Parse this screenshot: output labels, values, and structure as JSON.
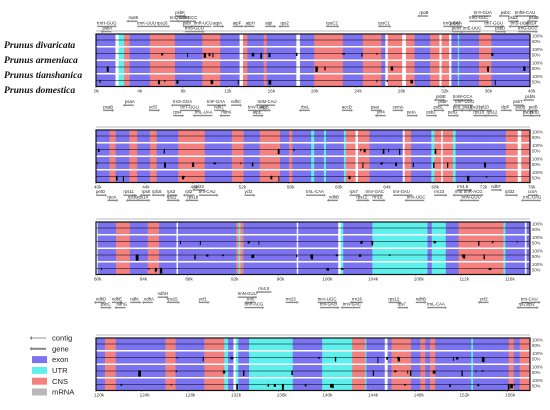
{
  "species": [
    "Prunus divaricata",
    "Prunus armeniaca",
    "Prunus tianshanica",
    "Prunus domestica"
  ],
  "percent_labels": [
    "100%",
    "50%"
  ],
  "colors": {
    "exon": "#7b73f0",
    "utr": "#5ef0ec",
    "cns": "#f48080",
    "mrna": "#b8b8b8",
    "arrow": "#888888",
    "frame": "#111111"
  },
  "legend": [
    {
      "key": "contig",
      "label": "contig",
      "swatch": "arrow-thin"
    },
    {
      "key": "gene",
      "label": "gene",
      "swatch": "arrow"
    },
    {
      "key": "exon",
      "label": "exon",
      "swatch": "exon"
    },
    {
      "key": "utr",
      "label": "UTR",
      "swatch": "utr"
    },
    {
      "key": "cns",
      "label": "CNS",
      "swatch": "cns"
    },
    {
      "key": "mrna",
      "label": "mRNA",
      "swatch": "mrna"
    }
  ],
  "panels": [
    {
      "start_kb": 0,
      "end_kb": 40,
      "ticks": [
        "0k",
        "4k",
        "8k",
        "12k",
        "16k",
        "20k",
        "24k",
        "28k",
        "32k",
        "36k",
        "40k"
      ],
      "genes": [
        {
          "label": "matK",
          "kb": 3.0,
          "row": 1
        },
        {
          "label": "trnK-UUU",
          "kb": 3.8,
          "row": 2
        },
        {
          "label": "trnH-GUG",
          "kb": 0.1,
          "row": 2
        },
        {
          "label": "psbA",
          "kb": 0.6,
          "row": 3
        },
        {
          "label": "psbK",
          "kb": 7.3,
          "row": 0
        },
        {
          "label": "trnQ-UUG",
          "kb": 6.8,
          "row": 1
        },
        {
          "label": "trnS-GCC",
          "kb": 7.6,
          "row": 1
        },
        {
          "label": "rps16",
          "kb": 5.6,
          "row": 2
        },
        {
          "label": "psbI",
          "kb": 8.0,
          "row": 2
        },
        {
          "label": "trnR-UCU",
          "kb": 9.0,
          "row": 2
        },
        {
          "label": "atpA",
          "kb": 10.8,
          "row": 2
        },
        {
          "label": "atpF",
          "kb": 12.6,
          "row": 2
        },
        {
          "label": "atpH",
          "kb": 13.8,
          "row": 2
        },
        {
          "label": "trnS-GCU",
          "kb": 8.2,
          "row": 3
        },
        {
          "label": "atpI",
          "kb": 15.6,
          "row": 2
        },
        {
          "label": "rps2",
          "kb": 17.0,
          "row": 2
        },
        {
          "label": "rpoC2",
          "kb": 21.2,
          "row": 2
        },
        {
          "label": "rpoC1",
          "kb": 26.0,
          "row": 2
        },
        {
          "label": "rpoB",
          "kb": 29.8,
          "row": 0
        },
        {
          "label": "trnC-GCA",
          "kb": 32.0,
          "row": 2
        },
        {
          "label": "petN",
          "kb": 32.8,
          "row": 3
        },
        {
          "label": "trnY-GUA",
          "kb": 34.8,
          "row": 0
        },
        {
          "label": "trnD-GUC",
          "kb": 34.4,
          "row": 1
        },
        {
          "label": "trnT-GGU",
          "kb": 35.8,
          "row": 2
        },
        {
          "label": "trnE-UUC",
          "kb": 33.8,
          "row": 3
        },
        {
          "label": "psbM",
          "kb": 32.6,
          "row": 2
        },
        {
          "label": "psbD",
          "kb": 36.8,
          "row": 3
        },
        {
          "label": "psbC",
          "kb": 37.3,
          "row": 0
        },
        {
          "label": "trnfM-CAU",
          "kb": 38.6,
          "row": 0
        },
        {
          "label": "psbZ",
          "kb": 38.0,
          "row": 1
        },
        {
          "label": "trnS-UGA",
          "kb": 38.2,
          "row": 2
        },
        {
          "label": "rps14",
          "kb": 39.6,
          "row": 2
        },
        {
          "label": "trnG-GCC",
          "kb": 38.9,
          "row": 3
        },
        {
          "label": "psaB",
          "kb": 39.9,
          "row": 1
        }
      ]
    },
    {
      "start_kb": 40,
      "end_kb": 76,
      "ticks": [
        "40k",
        "44k",
        "48k",
        "52k",
        "56k",
        "60k",
        "64k",
        "68k",
        "72k",
        "76k"
      ],
      "genes": [
        {
          "label": "psaA",
          "kb": 42.4,
          "row": 1
        },
        {
          "label": "psaB",
          "kb": 40.6,
          "row": 2
        },
        {
          "label": "ycf3",
          "kb": 44.4,
          "row": 2
        },
        {
          "label": "trnS-GGA",
          "kb": 46.4,
          "row": 1
        },
        {
          "label": "trnT-UGU",
          "kb": 47.0,
          "row": 2
        },
        {
          "label": "rps4",
          "kb": 46.4,
          "row": 3
        },
        {
          "label": "trnL-UAA",
          "kb": 48.2,
          "row": 3
        },
        {
          "label": "trnF-GAA",
          "kb": 49.2,
          "row": 1
        },
        {
          "label": "ndhJ",
          "kb": 49.8,
          "row": 2
        },
        {
          "label": "ndhK",
          "kb": 50.4,
          "row": 3
        },
        {
          "label": "ndhC",
          "kb": 51.2,
          "row": 1
        },
        {
          "label": "trnV-UAC",
          "kb": 52.6,
          "row": 2
        },
        {
          "label": "trnM-CAU",
          "kb": 53.4,
          "row": 1
        },
        {
          "label": "atpE",
          "kb": 53.0,
          "row": 3
        },
        {
          "label": "atpB",
          "kb": 53.6,
          "row": 2
        },
        {
          "label": "rbcL",
          "kb": 57.0,
          "row": 2
        },
        {
          "label": "accD",
          "kb": 60.4,
          "row": 2
        },
        {
          "label": "psaI",
          "kb": 62.8,
          "row": 2
        },
        {
          "label": "ycf4",
          "kb": 63.3,
          "row": 3
        },
        {
          "label": "cemA",
          "kb": 64.6,
          "row": 2
        },
        {
          "label": "petA",
          "kb": 65.8,
          "row": 3
        },
        {
          "label": "psbE",
          "kb": 68.2,
          "row": 0
        },
        {
          "label": "trnW-CCA",
          "kb": 69.6,
          "row": 0
        },
        {
          "label": "psbF",
          "kb": 68.4,
          "row": 1
        },
        {
          "label": "trnP-UGG",
          "kb": 69.8,
          "row": 1
        },
        {
          "label": "psbL",
          "kb": 68.0,
          "row": 2
        },
        {
          "label": "petL",
          "kb": 69.6,
          "row": 2
        },
        {
          "label": "psaJ",
          "kb": 70.4,
          "row": 2
        },
        {
          "label": "psbJ",
          "kb": 67.4,
          "row": 3
        },
        {
          "label": "petG",
          "kb": 69.2,
          "row": 3
        },
        {
          "label": "rps33",
          "kb": 71.0,
          "row": 2
        },
        {
          "label": "rpl20",
          "kb": 71.8,
          "row": 2
        },
        {
          "label": "rps18",
          "kb": 71.3,
          "row": 3
        },
        {
          "label": "rps12",
          "kb": 72.4,
          "row": 3
        },
        {
          "label": "clpP",
          "kb": 73.6,
          "row": 2
        },
        {
          "label": "psbB",
          "kb": 74.8,
          "row": 2
        },
        {
          "label": "psbN",
          "kb": 75.6,
          "row": 0
        },
        {
          "label": "psbT",
          "kb": 74.6,
          "row": 1
        },
        {
          "label": "psbH",
          "kb": 75.4,
          "row": 3
        },
        {
          "label": "petB",
          "kb": 75.9,
          "row": 2
        },
        {
          "label": "petD",
          "kb": 76.0,
          "row": 3
        }
      ]
    },
    {
      "start_kb": 80,
      "end_kb": 118,
      "ticks": [
        "80k",
        "84k",
        "88k",
        "92k",
        "96k",
        "100k",
        "104k",
        "108k",
        "112k",
        "116k"
      ],
      "genes": [
        {
          "label": "rpl23",
          "kb": 88.6,
          "row": 0
        },
        {
          "label": "petD",
          "kb": 80.0,
          "row": 1
        },
        {
          "label": "rps11",
          "kb": 82.4,
          "row": 1
        },
        {
          "label": "rps8",
          "kb": 84.0,
          "row": 1
        },
        {
          "label": "rpl16",
          "kb": 84.9,
          "row": 1
        },
        {
          "label": "rps3",
          "kb": 86.2,
          "row": 1
        },
        {
          "label": "rpl2",
          "kb": 87.8,
          "row": 1
        },
        {
          "label": "trnI-CAU",
          "kb": 89.0,
          "row": 1
        },
        {
          "label": "rpoA",
          "kb": 81.0,
          "row": 2
        },
        {
          "label": "rpl36",
          "kb": 82.8,
          "row": 2
        },
        {
          "label": "rps14",
          "kb": 83.6,
          "row": 2
        },
        {
          "label": "rpl22",
          "kb": 86.2,
          "row": 2
        },
        {
          "label": "rps19",
          "kb": 88.0,
          "row": 2
        },
        {
          "label": "ycf2",
          "kb": 93.0,
          "row": 1
        },
        {
          "label": "trnL-CAA",
          "kb": 98.4,
          "row": 1
        },
        {
          "label": "ndhB",
          "kb": 100.4,
          "row": 2
        },
        {
          "label": "rps7",
          "kb": 102.2,
          "row": 1
        },
        {
          "label": "rps12",
          "kb": 102.8,
          "row": 2
        },
        {
          "label": "trnV-GAC",
          "kb": 103.6,
          "row": 1
        },
        {
          "label": "trnI-GAU",
          "kb": 106.0,
          "row": 1
        },
        {
          "label": "rrn16",
          "kb": 104.2,
          "row": 2
        },
        {
          "label": "trnA-UGC",
          "kb": 107.2,
          "row": 2
        },
        {
          "label": "rrn23",
          "kb": 109.6,
          "row": 1
        },
        {
          "label": "rrn4.5",
          "kb": 111.6,
          "row": 0
        },
        {
          "label": "rrn5",
          "kb": 111.4,
          "row": 1
        },
        {
          "label": "trnR-ACG",
          "kb": 112.2,
          "row": 1
        },
        {
          "label": "ndhF",
          "kb": 114.6,
          "row": 0
        },
        {
          "label": "trnN-GUU",
          "kb": 112.0,
          "row": 2
        },
        {
          "label": "rpl32",
          "kb": 115.8,
          "row": 1
        },
        {
          "label": "ccsA",
          "kb": 117.8,
          "row": 1
        },
        {
          "label": "trnL-UAG",
          "kb": 117.4,
          "row": 2
        }
      ]
    },
    {
      "start_kb": 120,
      "end_kb": 158,
      "ticks": [
        "120k",
        "124k",
        "128k",
        "132k",
        "136k",
        "140k",
        "144k",
        "148k",
        "152k",
        "156k"
      ],
      "genes": [
        {
          "label": "rrn4.5",
          "kb": 134.2,
          "row": 0
        },
        {
          "label": "ndhH",
          "kb": 125.4,
          "row": 1
        },
        {
          "label": "trnN-GUU",
          "kb": 132.4,
          "row": 1
        },
        {
          "label": "ndhD",
          "kb": 120.0,
          "row": 2
        },
        {
          "label": "ndhE",
          "kb": 121.4,
          "row": 2
        },
        {
          "label": "ndhI",
          "kb": 123.0,
          "row": 2
        },
        {
          "label": "ndhA",
          "kb": 124.2,
          "row": 2
        },
        {
          "label": "rps15",
          "kb": 126.2,
          "row": 2
        },
        {
          "label": "ycf1",
          "kb": 129.0,
          "row": 2
        },
        {
          "label": "rrn5",
          "kb": 133.2,
          "row": 2
        },
        {
          "label": "rrn23",
          "kb": 136.6,
          "row": 2
        },
        {
          "label": "trnA-UGC",
          "kb": 139.4,
          "row": 2
        },
        {
          "label": "rrn16",
          "kb": 142.4,
          "row": 2
        },
        {
          "label": "rps12",
          "kb": 145.6,
          "row": 2
        },
        {
          "label": "ndhB",
          "kb": 148.0,
          "row": 2
        },
        {
          "label": "ycf2",
          "kb": 153.6,
          "row": 2
        },
        {
          "label": "trnI-CAU",
          "kb": 157.2,
          "row": 2
        },
        {
          "label": "psbC",
          "kb": 120.4,
          "row": 3
        },
        {
          "label": "ndhG",
          "kb": 121.8,
          "row": 3
        },
        {
          "label": "trnR-ACG",
          "kb": 133.0,
          "row": 3
        },
        {
          "label": "trnI-GAU",
          "kb": 139.6,
          "row": 3
        },
        {
          "label": "trnV-GAC",
          "kb": 141.6,
          "row": 3
        },
        {
          "label": "rps7",
          "kb": 146.4,
          "row": 3
        },
        {
          "label": "trnL-CAA",
          "kb": 149.0,
          "row": 3
        },
        {
          "label": "rpl23",
          "kb": 157.0,
          "row": 3
        },
        {
          "label": "rpl2",
          "kb": 157.8,
          "row": 3
        }
      ]
    }
  ]
}
